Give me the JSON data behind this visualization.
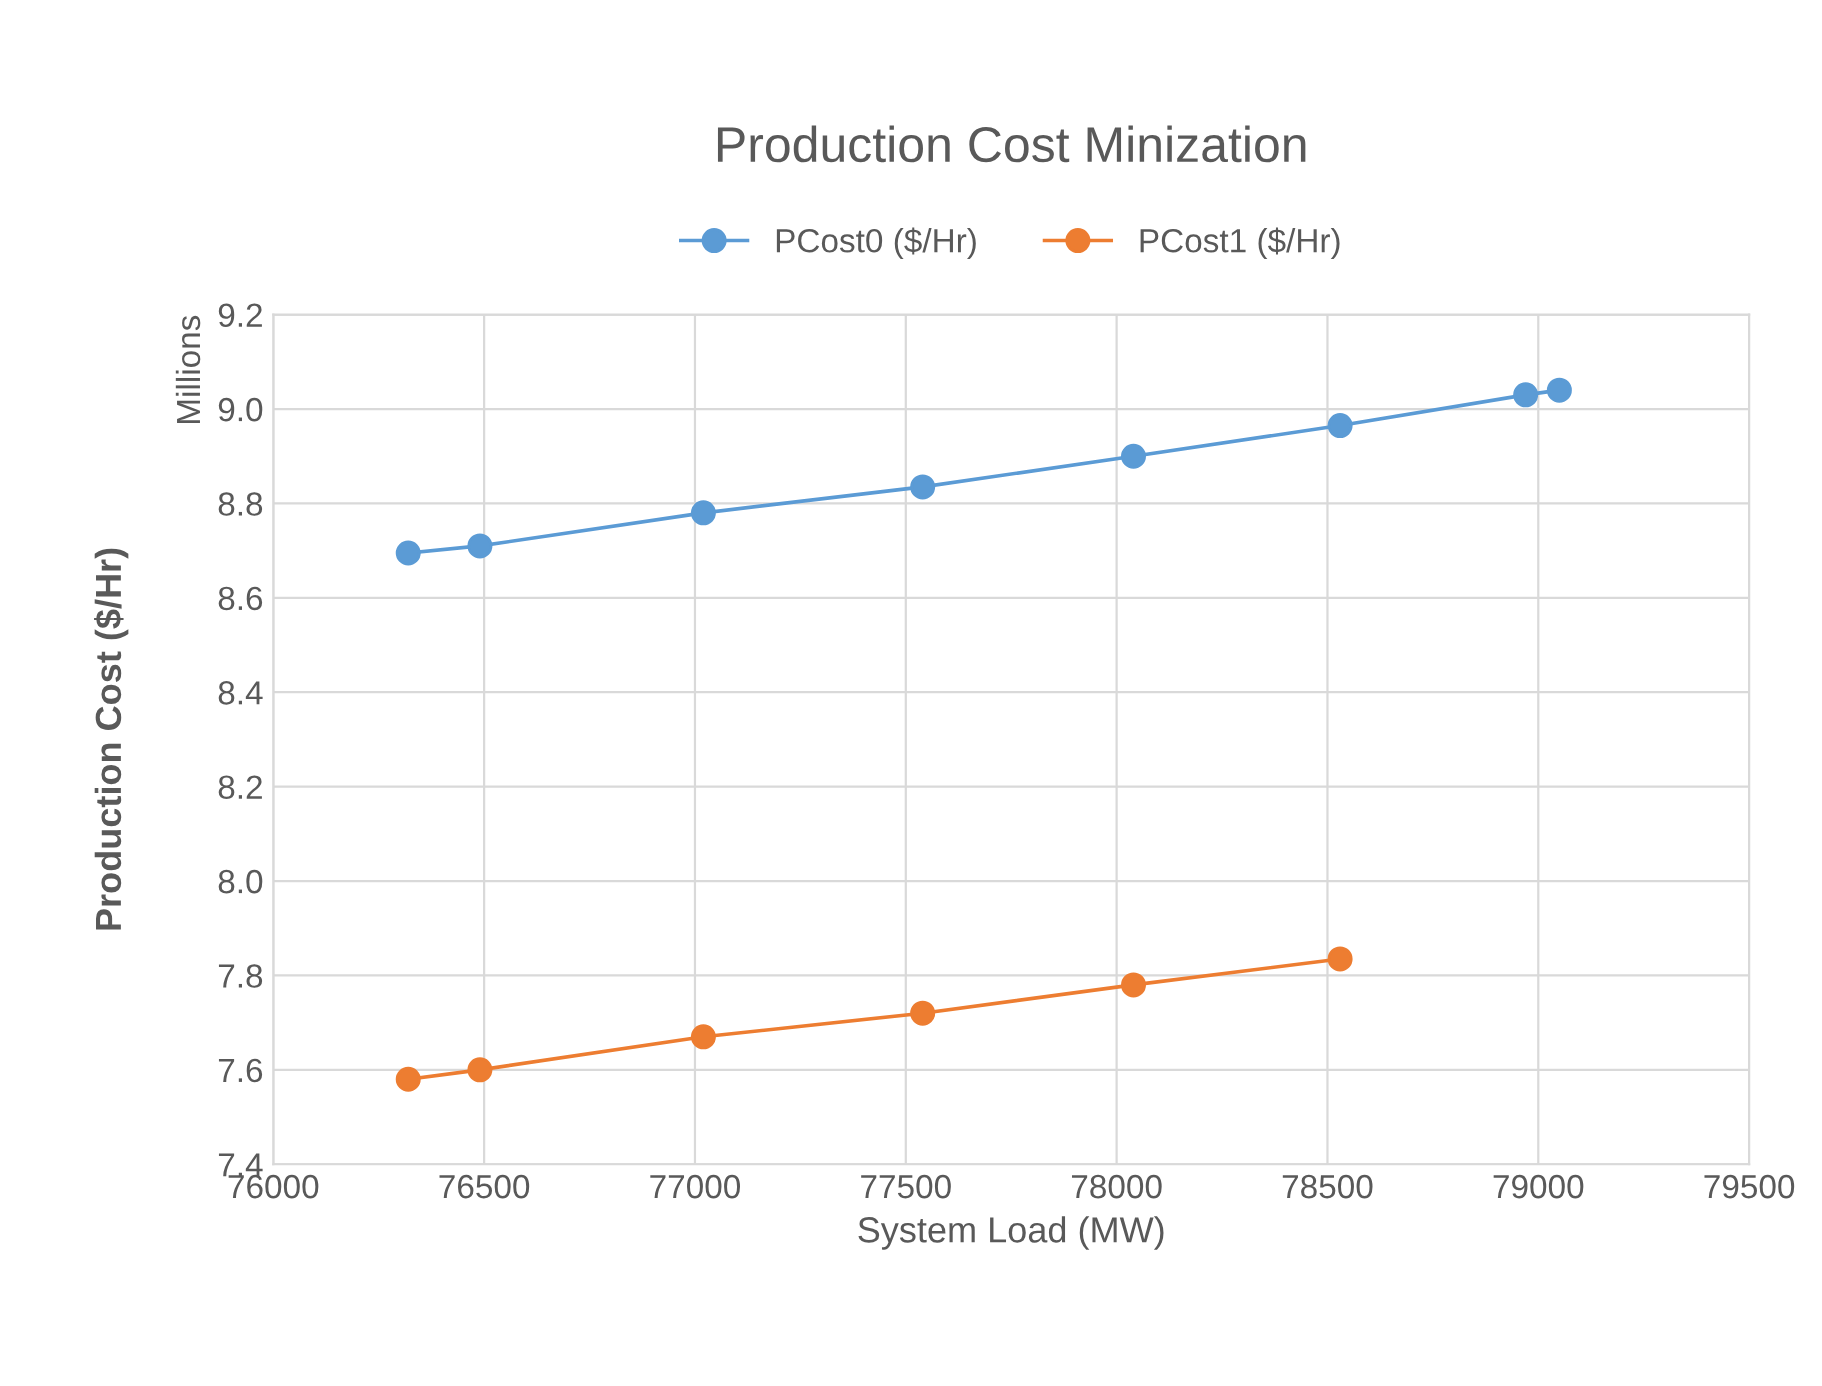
{
  "chart_data": {
    "type": "line",
    "title": "Production Cost Minization",
    "xlabel": "System Load (MW)",
    "ylabel": "Production Cost ($/Hr)",
    "annotations": [
      "Millions"
    ],
    "series": [
      {
        "name": "PCost0 ($/Hr)",
        "color": "#5b9bd5",
        "x": [
          76320,
          76490,
          77020,
          77540,
          78040,
          78530,
          78970,
          79050
        ],
        "values": [
          8.695,
          8.71,
          8.78,
          8.835,
          8.9,
          8.965,
          9.03,
          9.04
        ]
      },
      {
        "name": "PCost1 ($/Hr)",
        "color": "#ed7d31",
        "x": [
          76320,
          76490,
          77020,
          77540,
          78040,
          78530
        ],
        "values": [
          7.58,
          7.6,
          7.67,
          7.72,
          7.78,
          7.835
        ]
      }
    ],
    "xlim": [
      76000,
      79500
    ],
    "xticks": [
      76000,
      76500,
      77000,
      77500,
      78000,
      78500,
      79000,
      79500
    ],
    "ylim": [
      7.4,
      9.2
    ],
    "yticks": [
      {
        "value": 7.4,
        "label": "7.4"
      },
      {
        "value": 7.6,
        "label": "7.6"
      },
      {
        "value": 7.8,
        "label": "7.8"
      },
      {
        "value": 8.0,
        "label": "8.0"
      },
      {
        "value": 8.2,
        "label": "8.2"
      },
      {
        "value": 8.4,
        "label": "8.4"
      },
      {
        "value": 8.6,
        "label": "8.6"
      },
      {
        "value": 8.8,
        "label": "8.8"
      },
      {
        "value": 9.0,
        "label": "9.0"
      },
      {
        "value": 9.2,
        "label": "9.2"
      }
    ],
    "grid": true,
    "legend": "top",
    "marker": "circle",
    "line_style": "solid"
  }
}
